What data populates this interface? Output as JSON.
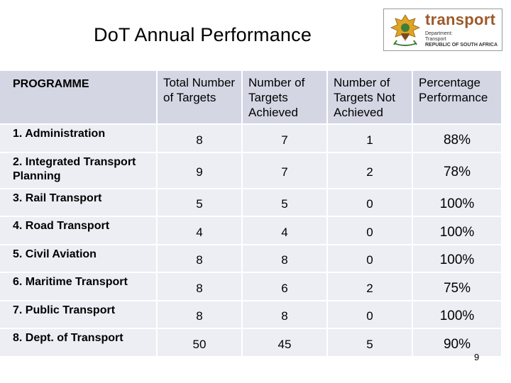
{
  "title": "DoT Annual Performance",
  "logo": {
    "brand": "transport",
    "lines": [
      "Department:",
      "Transport"
    ],
    "country": "REPUBLIC OF SOUTH AFRICA"
  },
  "table": {
    "headers": [
      "PROGRAMME",
      "Total Number of Targets",
      "Number of Targets Achieved",
      "Number of Targets Not Achieved",
      "Percentage Performance"
    ],
    "rows": [
      [
        "1. Administration",
        "8",
        "7",
        "1",
        "88%"
      ],
      [
        "2. Integrated Transport Planning",
        "9",
        "7",
        "2",
        "78%"
      ],
      [
        "3. Rail Transport",
        "5",
        "5",
        "0",
        "100%"
      ],
      [
        "4. Road Transport",
        "4",
        "4",
        "0",
        "100%"
      ],
      [
        "5. Civil Aviation",
        "8",
        "8",
        "0",
        "100%"
      ],
      [
        "6. Maritime Transport",
        "8",
        "6",
        "2",
        "75%"
      ],
      [
        "7. Public Transport",
        "8",
        "8",
        "0",
        "100%"
      ],
      [
        "8. Dept. of Transport",
        "50",
        "45",
        "5",
        "90%"
      ]
    ]
  },
  "page_number": "9"
}
